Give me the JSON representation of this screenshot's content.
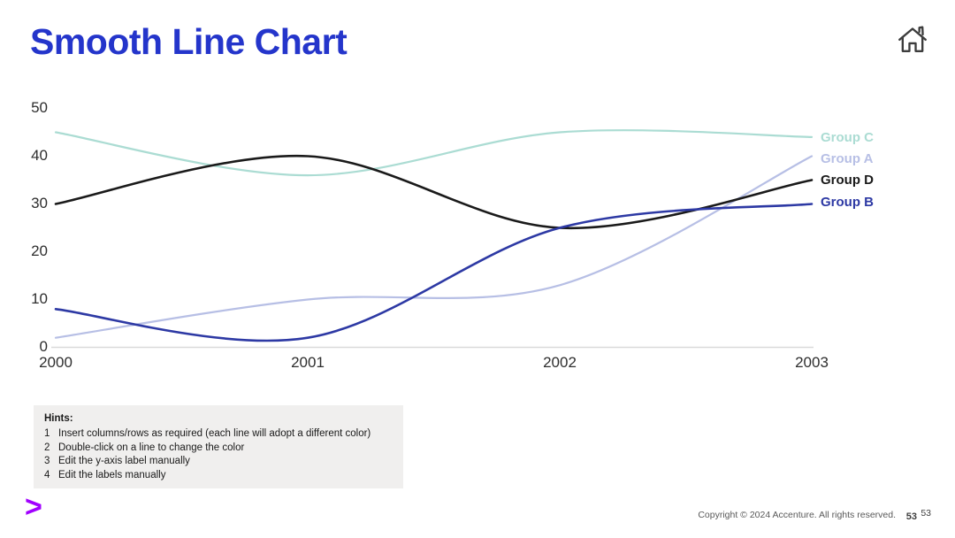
{
  "slide": {
    "title": "Smooth Line Chart",
    "logo_glyph": ">",
    "footer": {
      "copyright": "Copyright © 2024 Accenture. All rights reserved.",
      "page_number_bold": "53",
      "page_number": "53"
    }
  },
  "icons": {
    "home": "home-icon"
  },
  "colors": {
    "title_blue": "#2435cb",
    "accent_purple": "#a100ff",
    "axis_line": "#d9d9d9",
    "axis_text": "#2e2e2e"
  },
  "hints": {
    "heading": "Hints:",
    "items": [
      {
        "num": "1",
        "text": "Insert columns/rows as required (each line will adopt a different color)"
      },
      {
        "num": "2",
        "text": "Double-click on a line to change the color"
      },
      {
        "num": "3",
        "text": "Edit the y-axis label manually"
      },
      {
        "num": "4",
        "text": "Edit the labels manually"
      }
    ]
  },
  "chart_data": {
    "type": "line",
    "smooth": true,
    "title": "",
    "xlabel": "",
    "ylabel": "",
    "x": [
      2000,
      2001,
      2002,
      2003
    ],
    "x_tick_labels": [
      "2000",
      "2001",
      "2002",
      "2003"
    ],
    "y_tick_labels": [
      "50",
      "40",
      "30",
      "20",
      "10",
      "0"
    ],
    "y_tick_values": [
      50,
      40,
      30,
      20,
      10,
      0
    ],
    "ylim": [
      0,
      50
    ],
    "grid": false,
    "legend_position": "right-at-line-ends",
    "series": [
      {
        "name": "Group C",
        "color": "#abdcd3",
        "values": [
          45,
          36,
          45,
          44
        ]
      },
      {
        "name": "Group A",
        "color": "#b7bfe5",
        "values": [
          2,
          10,
          13,
          40
        ]
      },
      {
        "name": "Group D",
        "color": "#1a1a1a",
        "values": [
          30,
          40,
          25,
          35
        ]
      },
      {
        "name": "Group B",
        "color": "#2d39a4",
        "values": [
          8,
          2,
          25,
          30
        ]
      }
    ]
  }
}
